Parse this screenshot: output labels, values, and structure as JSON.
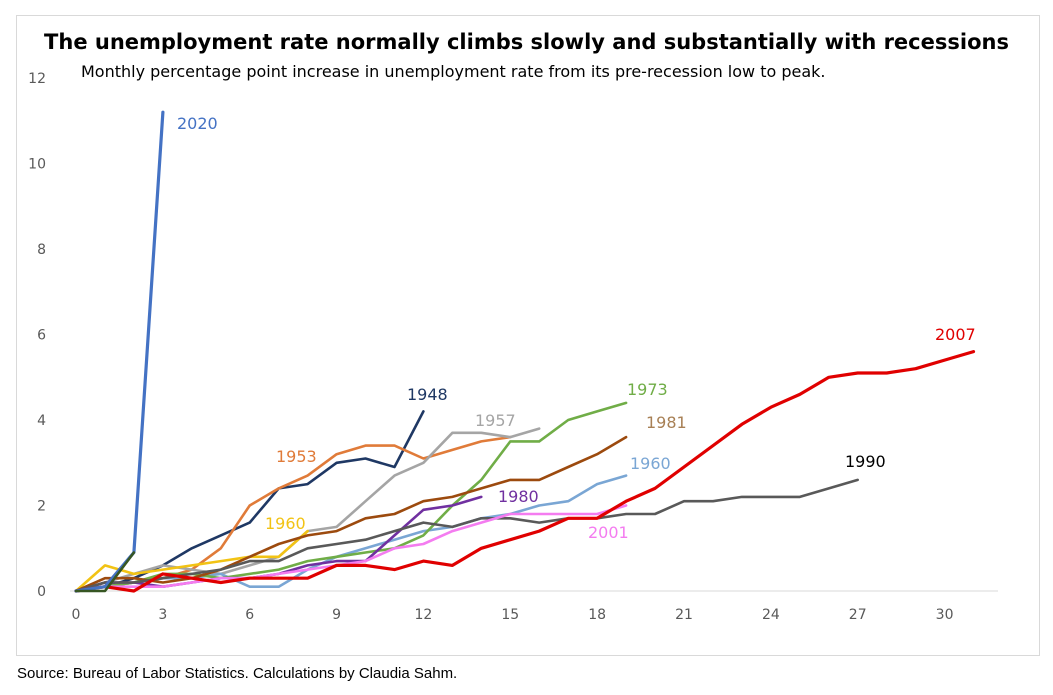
{
  "chart_data": {
    "type": "line",
    "title": "The unemployment rate normally climbs slowly and substantially with recessions",
    "subtitle": "Monthly percentage point increase in unemployment rate from its pre-recession low to peak.",
    "xlabel": "",
    "ylabel": "",
    "xlim": [
      0,
      31.5
    ],
    "ylim": [
      0,
      12
    ],
    "xticks": [
      "0",
      "3",
      "6",
      "9",
      "12",
      "15",
      "18",
      "21",
      "24",
      "27",
      "30"
    ],
    "yticks": [
      "0",
      "2",
      "4",
      "6",
      "8",
      "10",
      "12"
    ],
    "grid": false,
    "series": [
      {
        "name": "1948",
        "label": "1948",
        "color": "#1f3864",
        "x": [
          0,
          1,
          2,
          3,
          4,
          5,
          6,
          7,
          8,
          9,
          10,
          11,
          12
        ],
        "values": [
          0,
          0.1,
          0.3,
          0.6,
          1.0,
          1.3,
          1.6,
          2.4,
          2.5,
          3.0,
          3.1,
          2.9,
          4.2
        ]
      },
      {
        "name": "1953",
        "label": "1953",
        "color": "#e07b39",
        "x": [
          0,
          1,
          2,
          3,
          4,
          5,
          6,
          7,
          8,
          9,
          10,
          11,
          12,
          13,
          14,
          15
        ],
        "values": [
          0,
          0.1,
          0.2,
          0.3,
          0.5,
          1.0,
          2.0,
          2.4,
          2.7,
          3.2,
          3.4,
          3.4,
          3.1,
          3.3,
          3.5,
          3.6
        ]
      },
      {
        "name": "1957",
        "label": "1957",
        "color": "#a5a5a5",
        "x": [
          0,
          1,
          2,
          3,
          4,
          5,
          6,
          7,
          8,
          9,
          10,
          11,
          12,
          13,
          14,
          15,
          16
        ],
        "values": [
          0,
          0.2,
          0.4,
          0.6,
          0.5,
          0.4,
          0.6,
          0.8,
          1.4,
          1.5,
          2.1,
          2.7,
          3.0,
          3.7,
          3.7,
          3.6,
          3.8
        ]
      },
      {
        "name": "1960",
        "label": "1960",
        "color": "#f2c314",
        "x": [
          0,
          1,
          2,
          3,
          4,
          5,
          6,
          7,
          8
        ],
        "values": [
          0,
          0.6,
          0.4,
          0.5,
          0.6,
          0.7,
          0.8,
          0.8,
          1.4
        ]
      },
      {
        "name": "1960b",
        "label": "1960",
        "color": "#7aa6d4",
        "x": [
          0,
          1,
          2,
          3,
          4,
          5,
          6,
          7,
          8,
          9,
          10,
          11,
          12,
          13,
          14,
          15,
          16,
          17,
          18,
          19
        ],
        "values": [
          0,
          0.1,
          0.2,
          0.3,
          0.3,
          0.4,
          0.1,
          0.1,
          0.5,
          0.8,
          1.0,
          1.2,
          1.4,
          1.5,
          1.7,
          1.8,
          2.0,
          2.1,
          2.5,
          2.7
        ]
      },
      {
        "name": "1973",
        "label": "1973",
        "color": "#70ad47",
        "x": [
          0,
          1,
          2,
          3,
          4,
          5,
          6,
          7,
          8,
          9,
          10,
          11,
          12,
          13,
          14,
          15,
          16,
          17,
          18,
          19
        ],
        "values": [
          0,
          0.1,
          0.2,
          0.4,
          0.4,
          0.3,
          0.4,
          0.5,
          0.7,
          0.8,
          0.9,
          1.0,
          1.3,
          2.0,
          2.6,
          3.5,
          3.5,
          4.0,
          4.2,
          4.4
        ]
      },
      {
        "name": "1980",
        "label": "1980",
        "color": "#7030a0",
        "x": [
          0,
          1,
          2,
          3,
          4,
          5,
          6,
          7,
          8,
          9,
          10,
          11,
          12,
          13,
          14
        ],
        "values": [
          0,
          0.2,
          0.2,
          0.1,
          0.2,
          0.3,
          0.3,
          0.4,
          0.6,
          0.7,
          0.7,
          1.3,
          1.9,
          2.0,
          2.2
        ]
      },
      {
        "name": "1981",
        "label": "1981",
        "color": "#9c4a0e",
        "x": [
          0,
          1,
          2,
          3,
          4,
          5,
          6,
          7,
          8,
          9,
          10,
          11,
          12,
          13,
          14,
          15,
          16,
          17,
          18,
          19
        ],
        "values": [
          0,
          0.3,
          0.3,
          0.2,
          0.3,
          0.5,
          0.8,
          1.1,
          1.3,
          1.4,
          1.7,
          1.8,
          2.1,
          2.2,
          2.4,
          2.6,
          2.6,
          2.9,
          3.2,
          3.6
        ]
      },
      {
        "name": "1990",
        "label": "1990",
        "color": "#595959",
        "x": [
          0,
          1,
          2,
          3,
          4,
          5,
          6,
          7,
          8,
          9,
          10,
          11,
          12,
          13,
          14,
          15,
          16,
          17,
          18,
          19,
          20,
          21,
          22,
          23,
          24,
          25,
          26,
          27
        ],
        "values": [
          0,
          0.2,
          0.2,
          0.3,
          0.4,
          0.5,
          0.7,
          0.7,
          1.0,
          1.1,
          1.2,
          1.4,
          1.6,
          1.5,
          1.7,
          1.7,
          1.6,
          1.7,
          1.7,
          1.8,
          1.8,
          2.1,
          2.1,
          2.2,
          2.2,
          2.2,
          2.4,
          2.6
        ]
      },
      {
        "name": "2001",
        "label": "2001",
        "color": "#f47cf0",
        "x": [
          0,
          1,
          2,
          3,
          4,
          5,
          6,
          7,
          8,
          9,
          10,
          11,
          12,
          13,
          14,
          15,
          16,
          17,
          18,
          19
        ],
        "values": [
          0,
          0.1,
          0.1,
          0.1,
          0.2,
          0.3,
          0.3,
          0.4,
          0.5,
          0.6,
          0.7,
          1.0,
          1.1,
          1.4,
          1.6,
          1.8,
          1.8,
          1.8,
          1.8,
          2.0
        ]
      },
      {
        "name": "2007",
        "label": "2007",
        "color": "#e00000",
        "x": [
          0,
          1,
          2,
          3,
          4,
          5,
          6,
          7,
          8,
          9,
          10,
          11,
          12,
          13,
          14,
          15,
          16,
          17,
          18,
          19,
          20,
          21,
          22,
          23,
          24,
          25,
          26,
          27,
          28,
          29,
          30,
          31
        ],
        "values": [
          0,
          0.1,
          0.0,
          0.4,
          0.3,
          0.2,
          0.3,
          0.3,
          0.3,
          0.6,
          0.6,
          0.5,
          0.7,
          0.6,
          1.0,
          1.2,
          1.4,
          1.7,
          1.7,
          2.1,
          2.4,
          2.9,
          3.4,
          3.9,
          4.3,
          4.6,
          5.0,
          5.1,
          5.1,
          5.2,
          5.4,
          5.6
        ]
      },
      {
        "name": "2020",
        "label": "2020",
        "color": "#4472c4",
        "x": [
          0,
          1,
          2,
          3
        ],
        "values": [
          0,
          0.1,
          0.9,
          11.2
        ]
      },
      {
        "name": "2020b",
        "label": "",
        "color": "#375623",
        "x": [
          0,
          1,
          2
        ],
        "values": [
          0,
          0.0,
          0.9
        ]
      }
    ]
  },
  "source": "Source: Bureau of Labor Statistics. Calculations by Claudia Sahm."
}
